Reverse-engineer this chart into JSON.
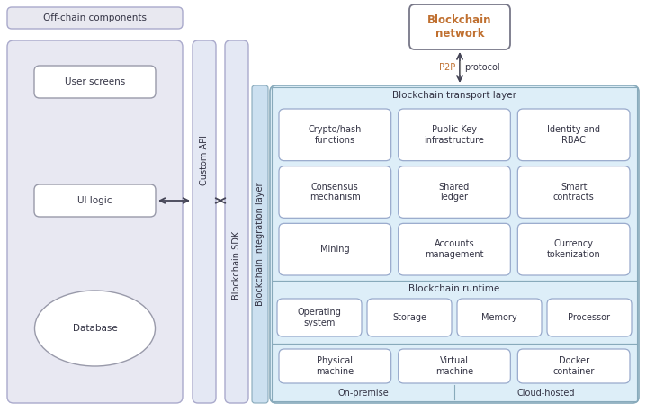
{
  "bg_color": "#ffffff",
  "off_chain_fill": "#e8e8f0",
  "off_chain_border": "#aaaacc",
  "left_panel_fill": "#e8e8f2",
  "left_panel_border": "#aaaacc",
  "inner_box_fill": "#ffffff",
  "inner_box_border": "#999aaa",
  "api_sdk_fill": "#e4e8f4",
  "api_sdk_border": "#aaaacc",
  "integration_fill": "#cce0f0",
  "integration_border": "#88aabb",
  "main_panel_fill": "#ddeef8",
  "main_panel_border": "#88aabb",
  "transport_box_fill": "#ffffff",
  "transport_box_border": "#99aacc",
  "runtime_box_fill": "#ffffff",
  "runtime_box_border": "#99aacc",
  "bottom_box_fill": "#ffffff",
  "bottom_box_border": "#99aacc",
  "bn_fill": "#ffffff",
  "bn_border": "#777788",
  "text_color": "#333344",
  "orange_text": "#c07030",
  "arrow_color": "#444455",
  "p2p_color": "#c07030",
  "off_chain_label": "Off-chain components",
  "blockchain_network_label": "Blockchain\nnetwork",
  "p2p_label": "P2P",
  "protocol_label": "protocol",
  "transport_layer_label": "Blockchain transport layer",
  "integration_layer_label": "Blockchain integration layer",
  "runtime_label": "Blockchain runtime",
  "on_premise_label": "On-premise",
  "cloud_hosted_label": "Cloud-hosted",
  "custom_api_label": "Custom API",
  "blockchain_sdk_label": "Blockchain SDK",
  "transport_boxes": [
    {
      "label": "Crypto/hash\nfunctions",
      "col": 0,
      "row": 0
    },
    {
      "label": "Public Key\ninfrastructure",
      "col": 1,
      "row": 0
    },
    {
      "label": "Identity and\nRBAC",
      "col": 2,
      "row": 0
    },
    {
      "label": "Consensus\nmechanism",
      "col": 0,
      "row": 1
    },
    {
      "label": "Shared\nledger",
      "col": 1,
      "row": 1
    },
    {
      "label": "Smart\ncontracts",
      "col": 2,
      "row": 1
    },
    {
      "label": "Mining",
      "col": 0,
      "row": 2
    },
    {
      "label": "Accounts\nmanagement",
      "col": 1,
      "row": 2
    },
    {
      "label": "Currency\ntokenization",
      "col": 2,
      "row": 2
    }
  ],
  "runtime_boxes": [
    {
      "label": "Operating\nsystem"
    },
    {
      "label": "Storage"
    },
    {
      "label": "Memory"
    },
    {
      "label": "Processor"
    }
  ],
  "bottom_boxes": [
    {
      "label": "Physical\nmachine"
    },
    {
      "label": "Virtual\nmachine"
    },
    {
      "label": "Docker\ncontainer"
    }
  ],
  "font_size_label": 7.5,
  "font_size_small": 7.0,
  "font_size_title": 7.5,
  "font_size_bn": 8.5
}
